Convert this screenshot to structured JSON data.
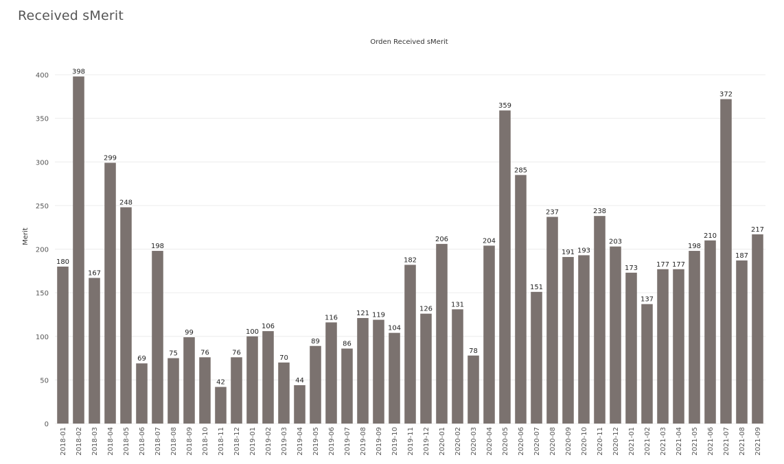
{
  "page": {
    "title": "Received sMerit"
  },
  "chart_data": {
    "type": "bar",
    "title": "Orden Received sMerit",
    "xlabel": "",
    "ylabel": "Merit",
    "ylim": [
      0,
      410
    ],
    "yticks": [
      0,
      50,
      100,
      150,
      200,
      250,
      300,
      350,
      400
    ],
    "grid": true,
    "bar_color": "#7b726f",
    "categories": [
      "2018-01",
      "2018-02",
      "2018-03",
      "2018-04",
      "2018-05",
      "2018-06",
      "2018-07",
      "2018-08",
      "2018-09",
      "2018-10",
      "2018-11",
      "2018-12",
      "2019-01",
      "2019-02",
      "2019-03",
      "2019-04",
      "2019-05",
      "2019-06",
      "2019-07",
      "2019-08",
      "2019-09",
      "2019-10",
      "2019-11",
      "2019-12",
      "2020-01",
      "2020-02",
      "2020-03",
      "2020-04",
      "2020-05",
      "2020-06",
      "2020-07",
      "2020-08",
      "2020-09",
      "2020-10",
      "2020-11",
      "2020-12",
      "2021-01",
      "2021-02",
      "2021-03",
      "2021-04",
      "2021-05",
      "2021-06",
      "2021-07",
      "2021-08",
      "2021-09"
    ],
    "values": [
      180,
      398,
      167,
      299,
      248,
      69,
      198,
      75,
      99,
      76,
      42,
      76,
      100,
      106,
      70,
      44,
      89,
      116,
      86,
      121,
      119,
      104,
      182,
      126,
      206,
      131,
      78,
      204,
      359,
      285,
      151,
      237,
      191,
      193,
      238,
      203,
      173,
      137,
      177,
      177,
      198,
      210,
      372,
      187,
      217
    ]
  }
}
